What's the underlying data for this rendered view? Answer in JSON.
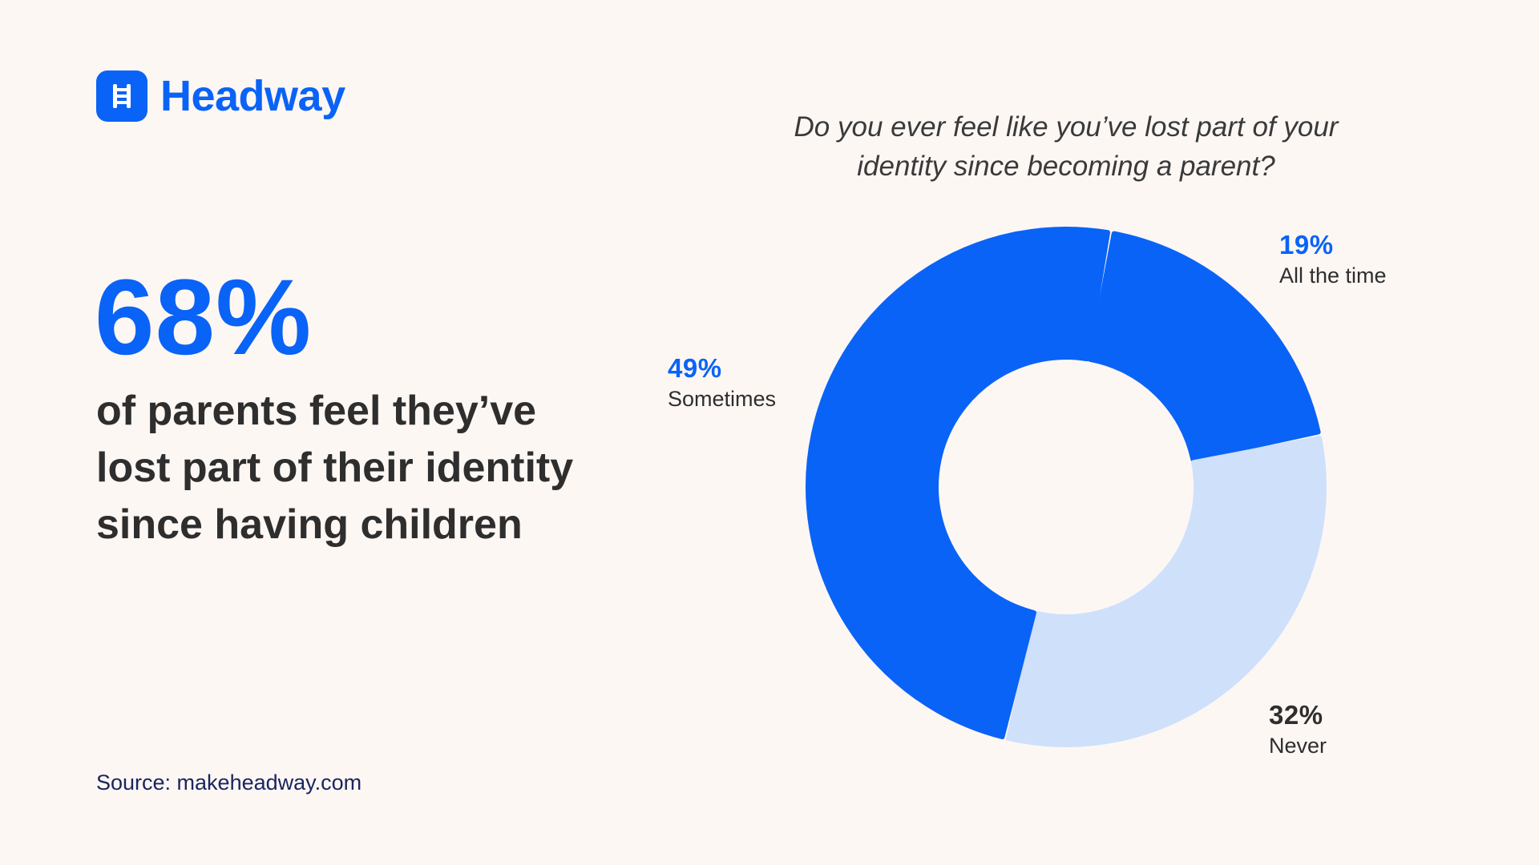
{
  "brand": {
    "name": "Headway",
    "icon": "book-ladder-icon",
    "color": "#0a63f7"
  },
  "stat": {
    "value": "68%",
    "text": "of parents feel they’ve lost part of their identity since having children"
  },
  "source": "Source: makeheadway.com",
  "colors": {
    "background": "#fdf7f4",
    "accent": "#0a63f7",
    "light": "#cfe0fb",
    "text": "#2e2e2e"
  },
  "chart_data": {
    "type": "pie",
    "title": "Do you ever feel like you’ve lost part of your identity since becoming a parent?",
    "donut": true,
    "slices": [
      {
        "label": "All the time",
        "value": 19,
        "pct_label": "19%",
        "color": "#0a63f7",
        "pct_color": "#0a63f7"
      },
      {
        "label": "Never",
        "value": 32,
        "pct_label": "32%",
        "color": "#cfe0fb",
        "pct_color": "#2e2e2e"
      },
      {
        "label": "Sometimes",
        "value": 49,
        "pct_label": "49%",
        "color": "#0a63f7",
        "pct_color": "#0a63f7"
      }
    ]
  }
}
